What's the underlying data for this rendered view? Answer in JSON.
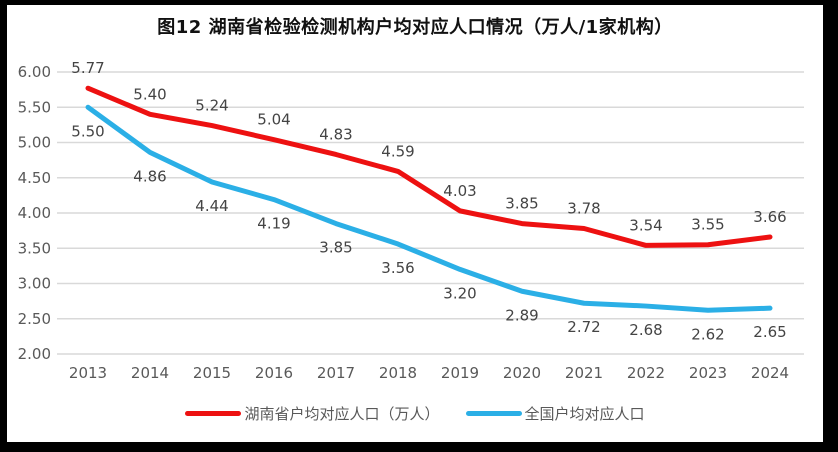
{
  "title": "图12 湖南省检验检测机构户均对应人口情况（万人/1家机构）",
  "chart_data": {
    "type": "line",
    "x_labels": [
      "2013",
      "2014",
      "2015",
      "2016",
      "2017",
      "2018",
      "2019",
      "2020",
      "2021",
      "2022",
      "2023",
      "2024"
    ],
    "series": [
      {
        "name": "湖南省户均对应人口（万人）",
        "color": "#ED1111",
        "values": [
          5.77,
          5.4,
          5.24,
          5.04,
          4.83,
          4.59,
          4.03,
          3.85,
          3.78,
          3.54,
          3.55,
          3.66
        ],
        "label_position": "above"
      },
      {
        "name": "全国户均对应人口",
        "color": "#2BAFE6",
        "values": [
          5.5,
          4.86,
          4.44,
          4.19,
          3.85,
          3.56,
          3.2,
          2.89,
          2.72,
          2.68,
          2.62,
          2.65
        ],
        "label_position": "below"
      }
    ],
    "ylim": [
      2.0,
      6.0
    ],
    "ytick_step": 0.5,
    "ytick_labels": [
      "6.00",
      "5.50",
      "5.00",
      "4.50",
      "4.00",
      "3.50",
      "3.00",
      "2.50",
      "2.00"
    ],
    "value_label_decimals": 2,
    "grid": "horizontal",
    "legend_position": "bottom",
    "colors": {
      "gridline": "#D9D9D9",
      "axis_text": "#595959",
      "data_label": "#444444",
      "background": "#FFFFFF",
      "frame": "#000000"
    }
  }
}
